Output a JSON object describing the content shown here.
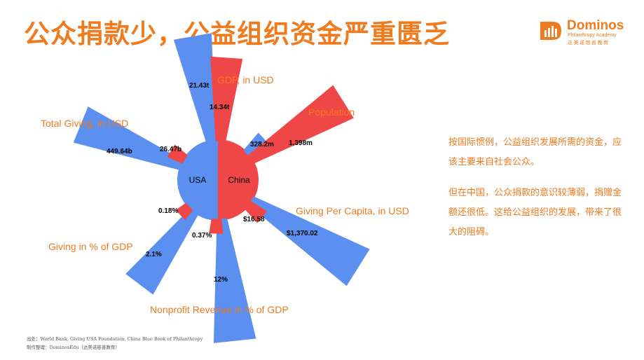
{
  "title": "公众捐款少，公益组织资金严重匮乏",
  "logo": {
    "name": "Dominos",
    "subtitle": "Philanthropy Academy",
    "chinese": "达美诺慈善教育",
    "color": "#f07a1e"
  },
  "side_text": {
    "p1": "按国际惯例，公益组织发展所需的资金，应该主要来自社会公众。",
    "p2": "但在中国，公众捐款的意识较薄弱，捐赠金额还很低。这给公益组织的发展，带来了很大的阻碍。"
  },
  "source": {
    "line1": "出处：World Bank, Giving USA Foundation, China Blue Book of Philanthropy",
    "line2": "制作整理：DominosEdu（达美诺慈善教育）"
  },
  "colors": {
    "usa": "#5b8ff0",
    "china": "#ef4747",
    "label_orange": "#f07a1e"
  },
  "chart_data": {
    "type": "radial-bar",
    "categories": [
      {
        "name": "GDP, in USD",
        "usa_label": "21.43t",
        "china_label": "14.34t"
      },
      {
        "name": "Population",
        "usa_label": "328.2m",
        "china_label": "1,398m"
      },
      {
        "name": "Giving Per Capita, in USD",
        "usa_label": "$1,370.02",
        "china_label": "$16.58"
      },
      {
        "name": "Nonprofit Revenue in % of GDP",
        "usa_label": "12%",
        "china_label": "0.37%"
      },
      {
        "name": "Giving in % of GDP",
        "usa_label": "2.1%",
        "china_label": "0.18%"
      },
      {
        "name": "Total Giving, in USD",
        "usa_label": "449.64b",
        "china_label": "26.47b"
      }
    ],
    "series": [
      {
        "name": "USA",
        "values": [
          21.43,
          328.2,
          1370.02,
          12,
          2.1,
          449.64
        ]
      },
      {
        "name": "China",
        "values": [
          14.34,
          1398,
          16.58,
          0.37,
          0.18,
          26.47
        ]
      }
    ],
    "relative_scale": {
      "usa": [
        1.0,
        0.2,
        1.0,
        1.0,
        1.0,
        1.0
      ],
      "china": [
        0.78,
        1.0,
        0.14,
        0.11,
        0.1,
        0.14
      ]
    },
    "center_labels": {
      "usa": "USA",
      "china": "China"
    }
  }
}
